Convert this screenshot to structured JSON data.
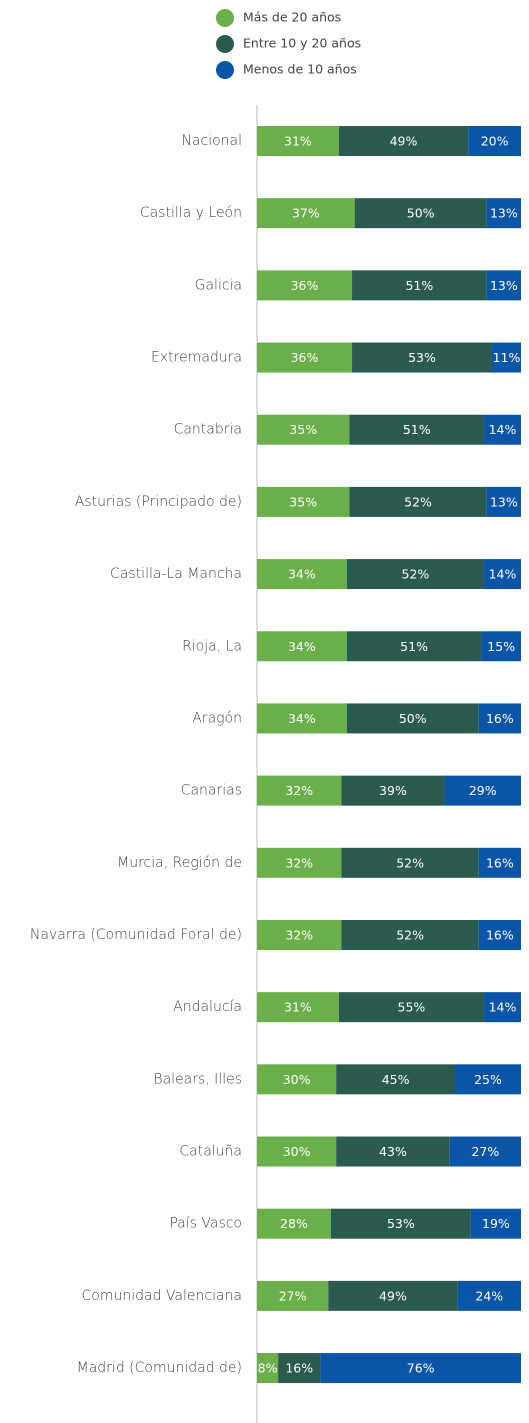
{
  "chart_data": {
    "type": "stacked-bar-horizontal",
    "categories": [
      "Nacional",
      "Castilla y León",
      "Galicia",
      "Extremadura",
      "Cantabria",
      "Asturias (Principado de)",
      "Castilla-La Mancha",
      "Rioja, La",
      "Aragón",
      "Canarias",
      "Murcia, Región de",
      "Navarra (Comunidad Foral de)",
      "Andalucía",
      "Balears, Illes",
      "Cataluña",
      "País Vasco",
      "Comunidad Valenciana",
      "Madrid (Comunidad de)"
    ],
    "series": [
      {
        "name": "Más de 20 años",
        "color": "#6aaf4a",
        "values": [
          31,
          37,
          36,
          36,
          35,
          35,
          34,
          34,
          34,
          32,
          32,
          32,
          31,
          30,
          30,
          28,
          27,
          8
        ],
        "value_labels": [
          "31%",
          "37%",
          "36%",
          "36%",
          "35%",
          "35%",
          "34%",
          "34%",
          "34%",
          "32%",
          "32%",
          "32%",
          "31%",
          "30%",
          "30%",
          "28%",
          "27%",
          "8%"
        ]
      },
      {
        "name": "Entre 10 y 20 años",
        "color": "#2b5a50",
        "values": [
          49,
          50,
          51,
          53,
          51,
          52,
          52,
          51,
          50,
          39,
          52,
          52,
          55,
          45,
          43,
          53,
          49,
          16
        ],
        "value_labels": [
          "49%",
          "50%",
          "51%",
          "53%",
          "51%",
          "52%",
          "52%",
          "51%",
          "50%",
          "39%",
          "52%",
          "52%",
          "55%",
          "45%",
          "43%",
          "53%",
          "49%",
          "16%"
        ]
      },
      {
        "name": "Menos de 10 años",
        "color": "#0b55a8",
        "values": [
          20,
          13,
          13,
          11,
          14,
          13,
          14,
          15,
          16,
          29,
          16,
          16,
          14,
          25,
          27,
          19,
          24,
          76
        ],
        "value_labels": [
          "20%",
          "13%",
          "13%",
          "11%",
          "14%",
          "13%",
          "14%",
          "15%",
          "16%",
          "29%",
          "16%",
          "16%",
          "14%",
          "25%",
          "27%",
          "19%",
          "24%",
          "76%"
        ]
      }
    ]
  }
}
